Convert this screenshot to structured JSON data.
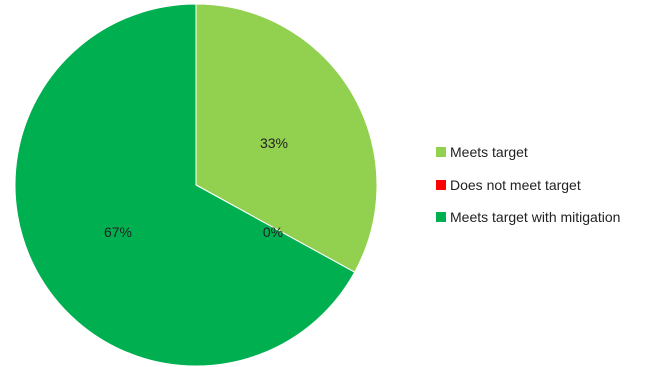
{
  "chart_data": {
    "type": "pie",
    "title": "",
    "legend_placement": "right",
    "start_angle_deg": 0,
    "direction": "clockwise",
    "series": [
      {
        "values": [
          33,
          0,
          67
        ],
        "labels": [
          "33%",
          "0%",
          "67%"
        ]
      }
    ],
    "categories": [
      "Meets target",
      "Does not meet target",
      "Meets target with mitigation"
    ],
    "colors": [
      "#92d050",
      "#ff0000",
      "#00b050"
    ]
  }
}
